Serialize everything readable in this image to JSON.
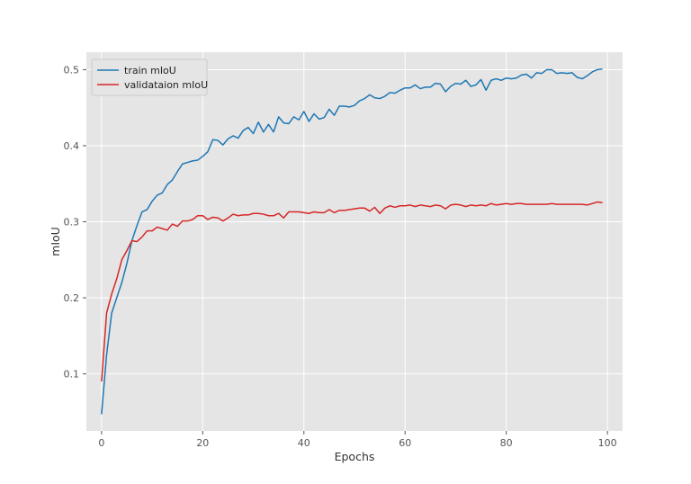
{
  "chart_data": {
    "type": "line",
    "title": "",
    "xlabel": "Epochs",
    "ylabel": "mIoU",
    "xlim": [
      -3,
      103
    ],
    "ylim": [
      0.025,
      0.523
    ],
    "xticks": [
      0,
      20,
      40,
      60,
      80,
      100
    ],
    "yticks": [
      0.1,
      0.2,
      0.3,
      0.4,
      0.5
    ],
    "grid": true,
    "legend_position": "top-left",
    "background": "#e5e5e5",
    "x": [
      0,
      1,
      2,
      3,
      4,
      5,
      6,
      7,
      8,
      9,
      10,
      11,
      12,
      13,
      14,
      15,
      16,
      17,
      18,
      19,
      20,
      21,
      22,
      23,
      24,
      25,
      26,
      27,
      28,
      29,
      30,
      31,
      32,
      33,
      34,
      35,
      36,
      37,
      38,
      39,
      40,
      41,
      42,
      43,
      44,
      45,
      46,
      47,
      48,
      49,
      50,
      51,
      52,
      53,
      54,
      55,
      56,
      57,
      58,
      59,
      60,
      61,
      62,
      63,
      64,
      65,
      66,
      67,
      68,
      69,
      70,
      71,
      72,
      73,
      74,
      75,
      76,
      77,
      78,
      79,
      80,
      81,
      82,
      83,
      84,
      85,
      86,
      87,
      88,
      89,
      90,
      91,
      92,
      93,
      94,
      95,
      96,
      97,
      98,
      99
    ],
    "series": [
      {
        "name": "train mIoU",
        "color": "#1f77b4",
        "values": [
          0.047,
          0.125,
          0.18,
          0.2,
          0.22,
          0.245,
          0.275,
          0.295,
          0.313,
          0.316,
          0.327,
          0.335,
          0.338,
          0.349,
          0.355,
          0.366,
          0.376,
          0.378,
          0.38,
          0.381,
          0.386,
          0.392,
          0.408,
          0.407,
          0.401,
          0.409,
          0.413,
          0.41,
          0.42,
          0.424,
          0.416,
          0.431,
          0.418,
          0.428,
          0.418,
          0.438,
          0.43,
          0.429,
          0.438,
          0.434,
          0.445,
          0.432,
          0.442,
          0.435,
          0.437,
          0.448,
          0.44,
          0.452,
          0.452,
          0.451,
          0.453,
          0.459,
          0.462,
          0.467,
          0.463,
          0.462,
          0.465,
          0.47,
          0.469,
          0.473,
          0.476,
          0.476,
          0.48,
          0.475,
          0.477,
          0.477,
          0.482,
          0.481,
          0.471,
          0.478,
          0.482,
          0.481,
          0.486,
          0.478,
          0.48,
          0.487,
          0.473,
          0.486,
          0.488,
          0.486,
          0.489,
          0.488,
          0.489,
          0.493,
          0.494,
          0.489,
          0.496,
          0.495,
          0.5,
          0.5,
          0.495,
          0.496,
          0.495,
          0.496,
          0.49,
          0.488,
          0.492,
          0.497,
          0.5,
          0.501
        ]
      },
      {
        "name": "validataion mIoU",
        "color": "#d62728",
        "values": [
          0.09,
          0.18,
          0.205,
          0.225,
          0.25,
          0.262,
          0.275,
          0.274,
          0.28,
          0.288,
          0.288,
          0.293,
          0.291,
          0.289,
          0.297,
          0.294,
          0.301,
          0.301,
          0.303,
          0.308,
          0.308,
          0.303,
          0.306,
          0.305,
          0.301,
          0.305,
          0.31,
          0.308,
          0.309,
          0.309,
          0.311,
          0.311,
          0.31,
          0.308,
          0.308,
          0.311,
          0.305,
          0.313,
          0.313,
          0.313,
          0.312,
          0.311,
          0.313,
          0.312,
          0.312,
          0.316,
          0.312,
          0.315,
          0.315,
          0.316,
          0.317,
          0.318,
          0.318,
          0.314,
          0.319,
          0.311,
          0.318,
          0.321,
          0.319,
          0.321,
          0.321,
          0.322,
          0.32,
          0.322,
          0.321,
          0.32,
          0.322,
          0.321,
          0.317,
          0.322,
          0.323,
          0.322,
          0.32,
          0.322,
          0.321,
          0.322,
          0.321,
          0.324,
          0.322,
          0.323,
          0.324,
          0.323,
          0.324,
          0.324,
          0.323,
          0.323,
          0.323,
          0.323,
          0.323,
          0.324,
          0.323,
          0.323,
          0.323,
          0.323,
          0.323,
          0.323,
          0.322,
          0.324,
          0.326,
          0.325
        ]
      }
    ]
  }
}
